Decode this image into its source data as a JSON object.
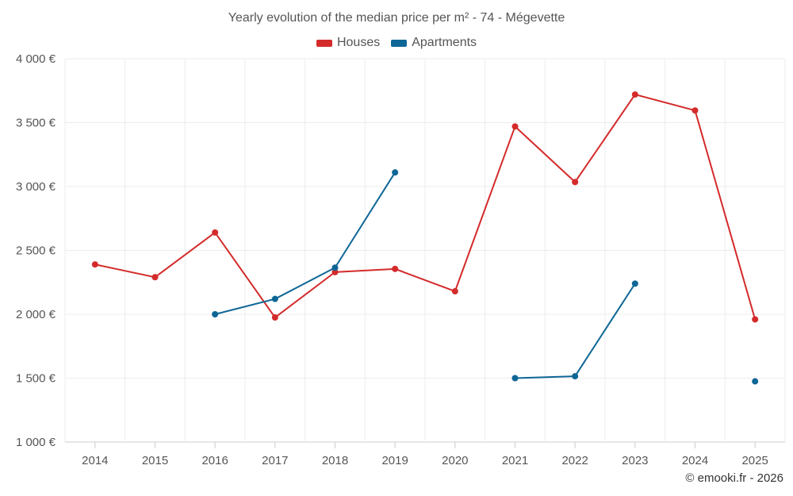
{
  "chart_data": {
    "type": "line",
    "title": "Yearly evolution of the median price per m² - 74 - Mégevette",
    "categories": [
      "2014",
      "2015",
      "2016",
      "2017",
      "2018",
      "2019",
      "2020",
      "2021",
      "2022",
      "2023",
      "2024",
      "2025"
    ],
    "ylim": [
      1000,
      4000
    ],
    "yticks": [
      1000,
      1500,
      2000,
      2500,
      3000,
      3500,
      4000
    ],
    "ytick_labels": [
      "1 000 €",
      "1 500 €",
      "2 000 €",
      "2 500 €",
      "3 000 €",
      "3 500 €",
      "4 000 €"
    ],
    "grid": true,
    "legend_position": "top-center",
    "series": [
      {
        "name": "Houses",
        "color": "#d42a2a",
        "values": [
          2390,
          2290,
          2640,
          1975,
          2330,
          2355,
          2180,
          3470,
          3035,
          3720,
          3595,
          1960
        ]
      },
      {
        "name": "Apartments",
        "color": "#0e6696",
        "values": [
          null,
          null,
          2000,
          2120,
          2365,
          3110,
          null,
          1500,
          1515,
          2240,
          null,
          1475
        ]
      }
    ]
  },
  "footer": {
    "copyright": "© emooki.fr - 2026"
  }
}
